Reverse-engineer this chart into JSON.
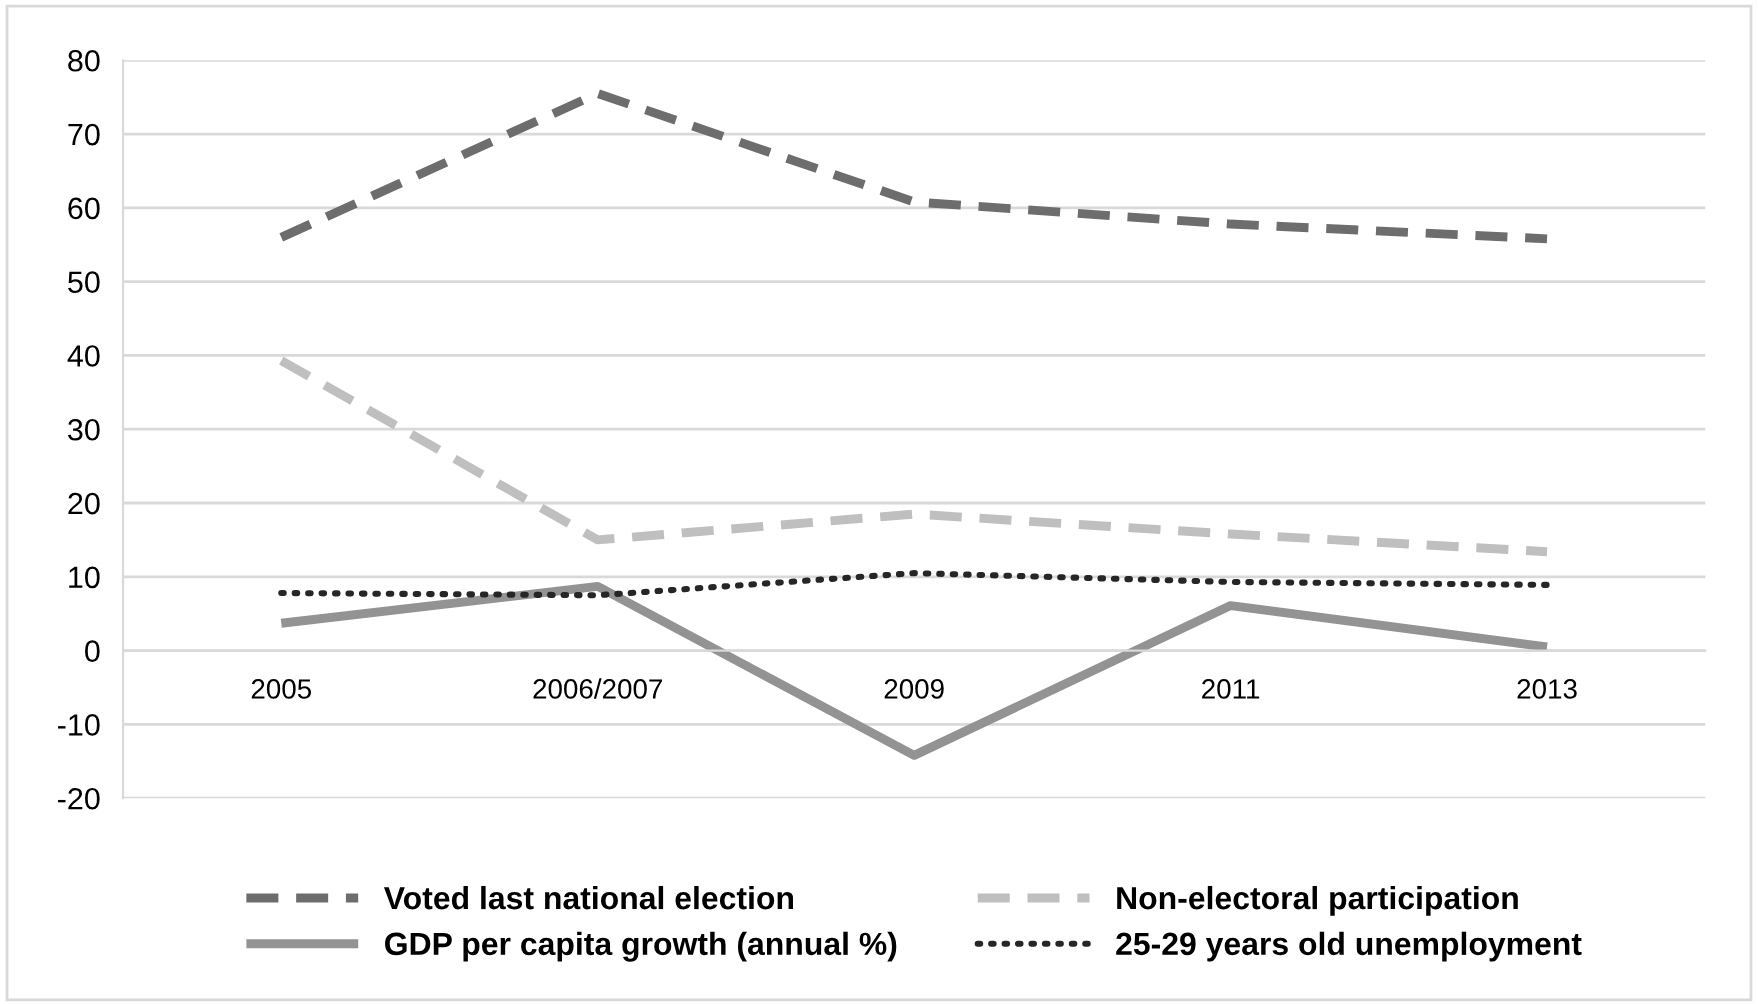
{
  "chart_data": {
    "type": "line",
    "categories": [
      "2005",
      "2006/2007",
      "2009",
      "2011",
      "2013"
    ],
    "series": [
      {
        "name": "Voted last national election",
        "color": "#6d6d6d",
        "line_style": "dashed",
        "values": [
          56,
          75.5,
          60.8,
          57.8,
          55.8
        ]
      },
      {
        "name": "Non-electoral participation",
        "color": "#bfbfbf",
        "line_style": "dashed",
        "values": [
          39.3,
          15,
          18.5,
          15.8,
          13.4
        ]
      },
      {
        "name": "GDP per capita growth (annual %)",
        "color": "#939393",
        "line_style": "solid",
        "values": [
          3.7,
          8.7,
          -14.2,
          6.1,
          0.5
        ]
      },
      {
        "name": "25-29 years old unemployment",
        "color": "#262626",
        "line_style": "dotted",
        "values": [
          7.8,
          7.5,
          10.5,
          9.3,
          8.9
        ]
      }
    ],
    "ylim": [
      -20,
      80
    ],
    "yticks": [
      -20,
      -10,
      0,
      10,
      20,
      30,
      40,
      50,
      60,
      70,
      80
    ],
    "grid": "y",
    "legend": "bottom",
    "marker": "none"
  }
}
